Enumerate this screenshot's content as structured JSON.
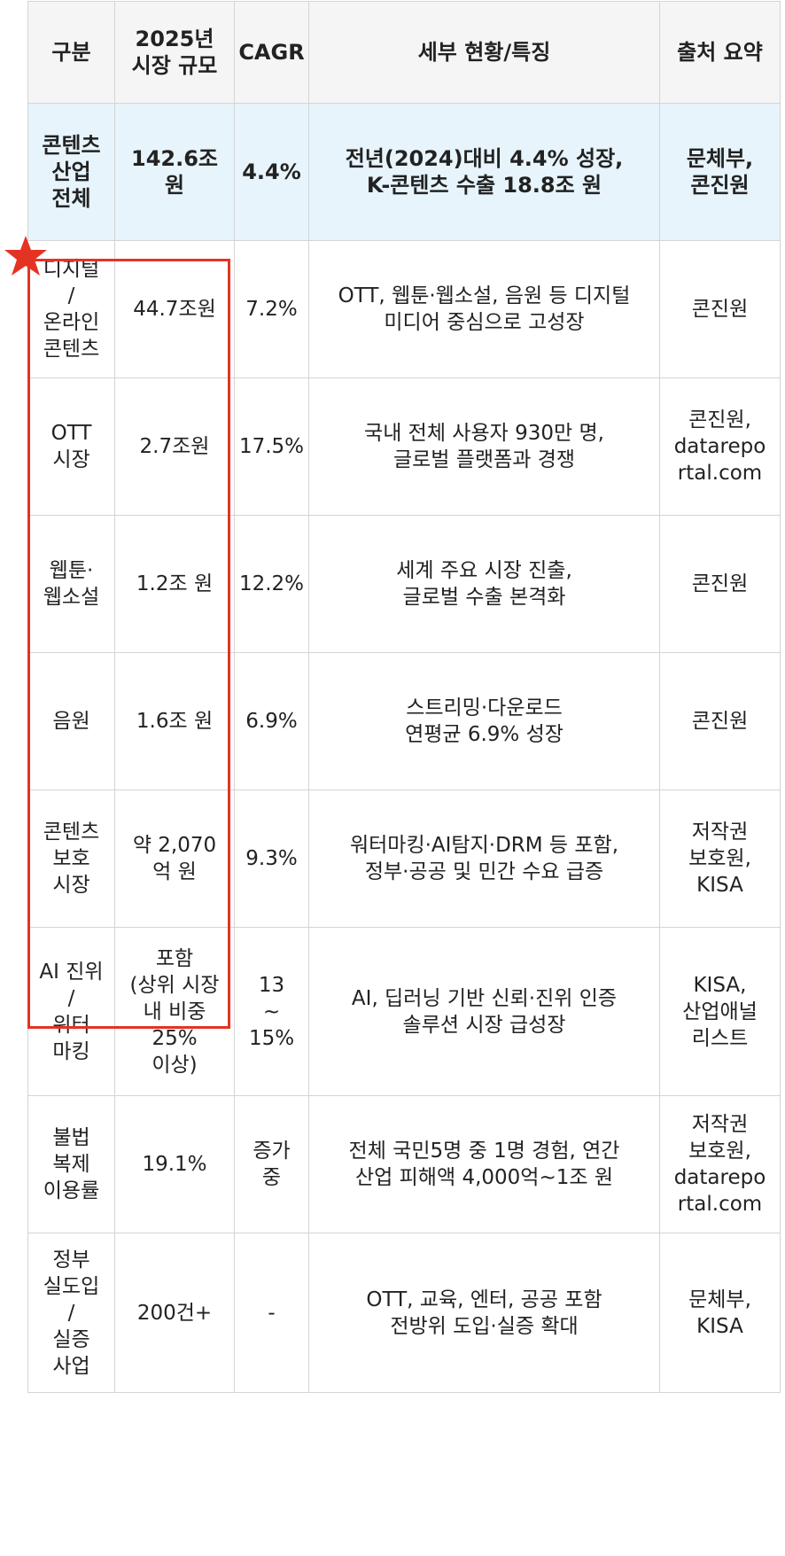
{
  "columns": [
    "구분",
    "2025년\n시장 규모",
    "CAGR",
    "세부 현황/특징",
    "출처 요약"
  ],
  "rows": [
    {
      "cat": "콘텐츠\n산업\n전체",
      "size": "142.6조\n원",
      "cagr": "4.4%",
      "detail": "전년(2024)대비 4.4% 성장,\nK-콘텐츠 수출 18.8조 원",
      "source": "문체부,\n콘진원",
      "highlight": true
    },
    {
      "cat": "디지털\n/\n온라인\n콘텐츠",
      "size": "44.7조원",
      "cagr": "7.2%",
      "detail": "OTT, 웹툰·웹소설, 음원 등 디지털\n미디어 중심으로 고성장",
      "source": "콘진원"
    },
    {
      "cat": "OTT\n시장",
      "size": "2.7조원",
      "cagr": "17.5%",
      "detail": "국내 전체 사용자 930만 명,\n글로벌 플랫폼과 경쟁",
      "source": "콘진원,\ndatarepo\nrtal.com"
    },
    {
      "cat": "웹툰·\n웹소설",
      "size": "1.2조 원",
      "cagr": "12.2%",
      "detail": "세계 주요 시장 진출,\n글로벌 수출 본격화",
      "source": "콘진원"
    },
    {
      "cat": "음원",
      "size": "1.6조 원",
      "cagr": "6.9%",
      "detail": "스트리밍·다운로드\n연평균 6.9% 성장",
      "source": "콘진원"
    },
    {
      "cat": "콘텐츠\n보호\n시장",
      "size": "약 2,070\n억 원",
      "cagr": "9.3%",
      "detail": "워터마킹·AI탐지·DRM 등 포함,\n정부·공공 및 민간 수요 급증",
      "source": "저작권\n보호원,\nKISA"
    },
    {
      "cat": "AI 진위\n/\n워터\n마킹",
      "size": "포함\n(상위 시장\n내 비중\n25%\n이상)",
      "cagr": "13\n~\n15%",
      "detail": "AI, 딥러닝 기반 신뢰·진위 인증\n솔루션 시장 급성장",
      "source": "KISA,\n산업애널\n리스트"
    },
    {
      "cat": "불법\n복제\n이용률",
      "size": "19.1%",
      "cagr": "증가\n중",
      "detail": "전체 국민5명 중 1명 경험, 연간\n산업 피해액 4,000억~1조 원",
      "source": "저작권\n보호원,\ndatarepo\nrtal.com"
    },
    {
      "cat": "정부\n실도입\n/\n실증\n사업",
      "size": "200건+",
      "cagr": "-",
      "detail": "OTT, 교육, 엔터, 공공 포함\n전방위 도입·실증 확대",
      "source": "문체부,\nKISA"
    }
  ],
  "accent_color": "#e53323",
  "highlight_color": "#e7f4fc",
  "icons": {
    "marker": "star-icon"
  }
}
